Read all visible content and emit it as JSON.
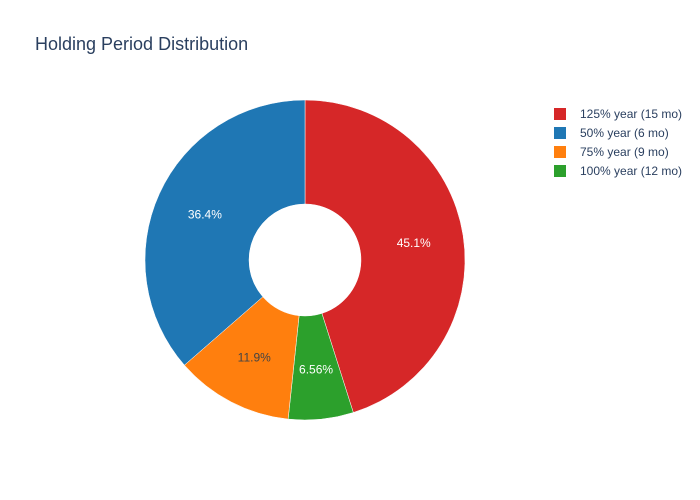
{
  "chart_data": {
    "type": "pie",
    "hole": true,
    "title": "Holding Period Distribution",
    "legend_position": "top-right",
    "slices": [
      {
        "label": "125% year (15 mo)",
        "value": 45.1,
        "text": "45.1%",
        "color": "#d62728",
        "text_color": "#ffffff"
      },
      {
        "label": "100% year (12 mo)",
        "value": 6.56,
        "text": "6.56%",
        "color": "#2ca02c",
        "text_color": "#ffffff"
      },
      {
        "label": "75% year (9 mo)",
        "value": 11.9,
        "text": "11.9%",
        "color": "#ff7f0e",
        "text_color": "#444444"
      },
      {
        "label": "50% year (6 mo)",
        "value": 36.4,
        "text": "36.4%",
        "color": "#1f77b4",
        "text_color": "#ffffff"
      }
    ],
    "legend": [
      {
        "label": "125% year (15 mo)",
        "color": "#d62728"
      },
      {
        "label": "50% year (6 mo)",
        "color": "#1f77b4"
      },
      {
        "label": "75% year (9 mo)",
        "color": "#ff7f0e"
      },
      {
        "label": "100% year (12 mo)",
        "color": "#2ca02c"
      }
    ]
  }
}
